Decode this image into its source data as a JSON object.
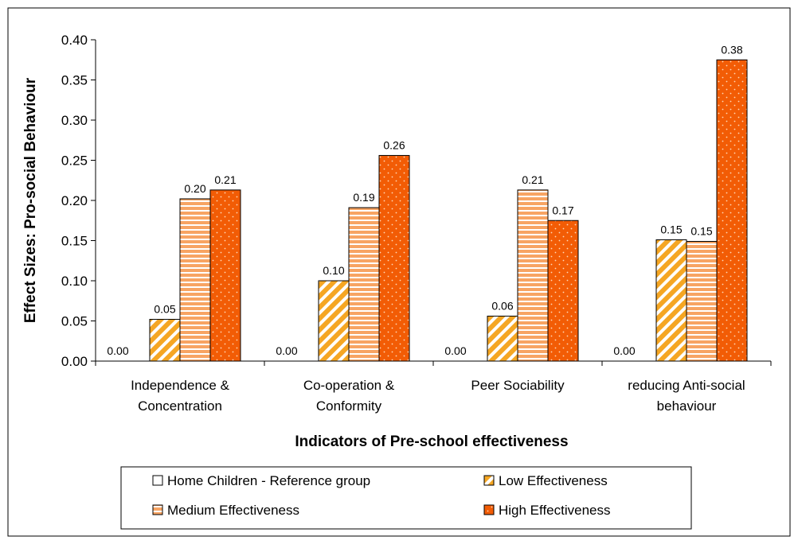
{
  "chart_data": {
    "type": "bar",
    "xlabel": "Indicators of Pre-school effectiveness",
    "ylabel": "Effect Sizes: Pro-social Behaviour",
    "ylim": [
      0,
      0.4
    ],
    "yticks": [
      "0.00",
      "0.05",
      "0.10",
      "0.15",
      "0.20",
      "0.25",
      "0.30",
      "0.35",
      "0.40"
    ],
    "categories": [
      [
        "Independence &",
        "Concentration"
      ],
      [
        "Co-operation &",
        "Conformity"
      ],
      [
        "Peer Sociability"
      ],
      [
        "reducing Anti-social",
        "behaviour"
      ]
    ],
    "series": [
      {
        "name": "Home Children - Reference group",
        "values": [
          0.0,
          0.0,
          0.0,
          0.0
        ],
        "labels": [
          "0.00",
          "0.00",
          "0.00",
          "0.00"
        ],
        "color": "#ffffff",
        "pattern": "none"
      },
      {
        "name": "Low  Effectiveness",
        "values": [
          0.052,
          0.1,
          0.056,
          0.151
        ],
        "labels": [
          "0.05",
          "0.10",
          "0.06",
          "0.15"
        ],
        "color": "#f5a623",
        "pattern": "diagonal-stripes"
      },
      {
        "name": "Medium Effectiveness",
        "values": [
          0.202,
          0.191,
          0.213,
          0.149
        ],
        "labels": [
          "0.20",
          "0.19",
          "0.21",
          "0.15"
        ],
        "color": "#f7a463",
        "pattern": "horizontal-stripes"
      },
      {
        "name": "High Effectiveness",
        "values": [
          0.213,
          0.256,
          0.175,
          0.375
        ],
        "labels": [
          "0.21",
          "0.26",
          "0.17",
          "0.38"
        ],
        "color": "#f25c05",
        "pattern": "dots"
      }
    ],
    "legend": "bottom",
    "grid": false
  }
}
